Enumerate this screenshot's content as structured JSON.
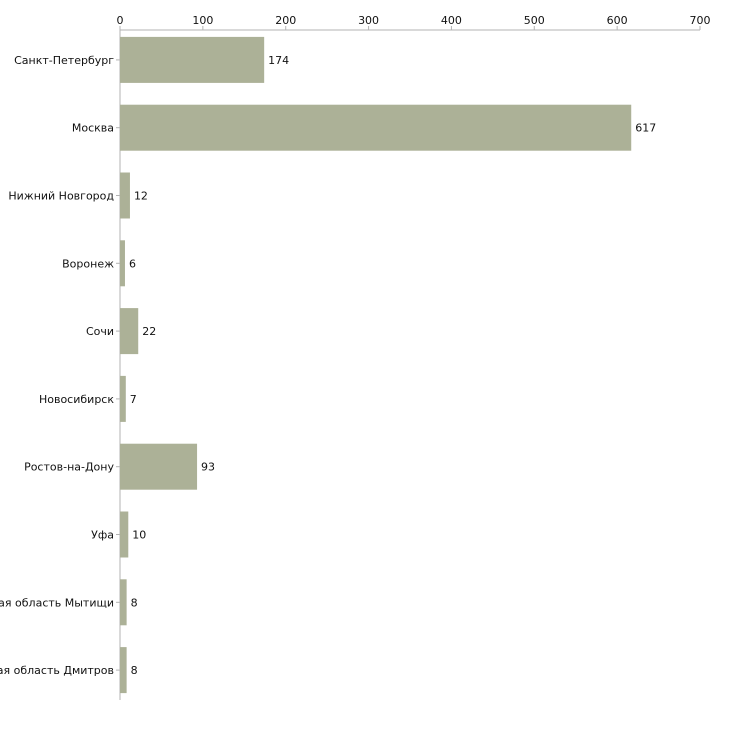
{
  "chart_data": {
    "type": "bar",
    "orientation": "horizontal",
    "title": "",
    "xlabel": "",
    "ylabel": "",
    "xlim": [
      0,
      700
    ],
    "ticks": [
      0,
      100,
      200,
      300,
      400,
      500,
      600,
      700
    ],
    "tick_position": "top",
    "grid": false,
    "legend": "none",
    "bar_color": "#acb197",
    "categories": [
      "Санкт-Петербург",
      "Москва",
      "Нижний Новгород",
      "Воронеж",
      "Сочи",
      "Новосибирск",
      "Ростов-на-Дону",
      "Уфа",
      "Московская область Мытищи",
      "Московская область Дмитров"
    ],
    "values": [
      174,
      617,
      12,
      6,
      22,
      7,
      93,
      10,
      8,
      8
    ]
  }
}
